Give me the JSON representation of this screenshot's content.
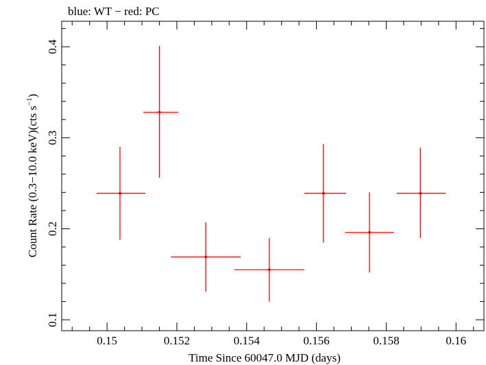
{
  "chart_data": {
    "type": "scatter",
    "subtitle": "blue: WT − red: PC",
    "xlabel": "Time Since 60047.0 MJD (days)",
    "ylabel": "Count Rate (0.3−10.0 keV)(cts s",
    "ylabel_sup": "−1",
    "ylabel_close": ")",
    "xlim": [
      0.1487,
      0.1608
    ],
    "ylim": [
      0.088,
      0.428
    ],
    "x_ticks": [
      0.15,
      0.152,
      0.154,
      0.156,
      0.158,
      0.16
    ],
    "x_tick_labels": [
      "0.15",
      "0.152",
      "0.154",
      "0.156",
      "0.158",
      "0.16"
    ],
    "y_ticks": [
      0.1,
      0.2,
      0.3,
      0.4
    ],
    "y_tick_labels": [
      "0.1",
      "0.2",
      "0.3",
      "0.4"
    ],
    "grid": false,
    "series": [
      {
        "color": "#ff0000",
        "points": [
          {
            "x": 0.15037,
            "y": 0.239,
            "xerr_lo": 0.00067,
            "xerr_hi": 0.00073,
            "yerr_lo": 0.051,
            "yerr_hi": 0.051
          },
          {
            "x": 0.1515,
            "y": 0.328,
            "xerr_lo": 0.00046,
            "xerr_hi": 0.00054,
            "yerr_lo": 0.072,
            "yerr_hi": 0.073
          },
          {
            "x": 0.15283,
            "y": 0.169,
            "xerr_lo": 0.001,
            "xerr_hi": 0.001,
            "yerr_lo": 0.038,
            "yerr_hi": 0.038
          },
          {
            "x": 0.15465,
            "y": 0.155,
            "xerr_lo": 0.001,
            "xerr_hi": 0.001,
            "yerr_lo": 0.035,
            "yerr_hi": 0.035
          },
          {
            "x": 0.1562,
            "y": 0.239,
            "xerr_lo": 0.00055,
            "xerr_hi": 0.00065,
            "yerr_lo": 0.054,
            "yerr_hi": 0.054
          },
          {
            "x": 0.15752,
            "y": 0.196,
            "xerr_lo": 0.0007,
            "xerr_hi": 0.0007,
            "yerr_lo": 0.044,
            "yerr_hi": 0.044
          },
          {
            "x": 0.15898,
            "y": 0.239,
            "xerr_lo": 0.00068,
            "xerr_hi": 0.00072,
            "yerr_lo": 0.049,
            "yerr_hi": 0.05
          }
        ]
      }
    ]
  }
}
